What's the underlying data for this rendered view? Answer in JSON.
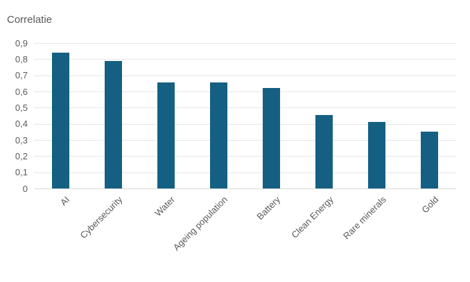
{
  "chart": {
    "title": "Correlatie"
  },
  "chart_data": {
    "type": "bar",
    "title": "Correlatie",
    "categories": [
      "AI",
      "Cybersecurity",
      "Water",
      "Ageing population",
      "Battery",
      "Clean Energy",
      "Rare minerals",
      "Gold"
    ],
    "values": [
      0.84,
      0.79,
      0.655,
      0.655,
      0.62,
      0.455,
      0.41,
      0.35
    ],
    "xlabel": "",
    "ylabel": "",
    "ylim": [
      0,
      0.9
    ],
    "ytick_step": 0.1,
    "ytick_labels": [
      "0",
      "0,1",
      "0,2",
      "0,3",
      "0,4",
      "0,5",
      "0,6",
      "0,7",
      "0,8",
      "0,9"
    ],
    "decimal_separator": ",",
    "grid": true,
    "legend": null,
    "bar_color": "#156082",
    "gridline_color": "#e6e6e6",
    "zero_line_color": "#d9d9d9",
    "text_color": "#595959"
  }
}
